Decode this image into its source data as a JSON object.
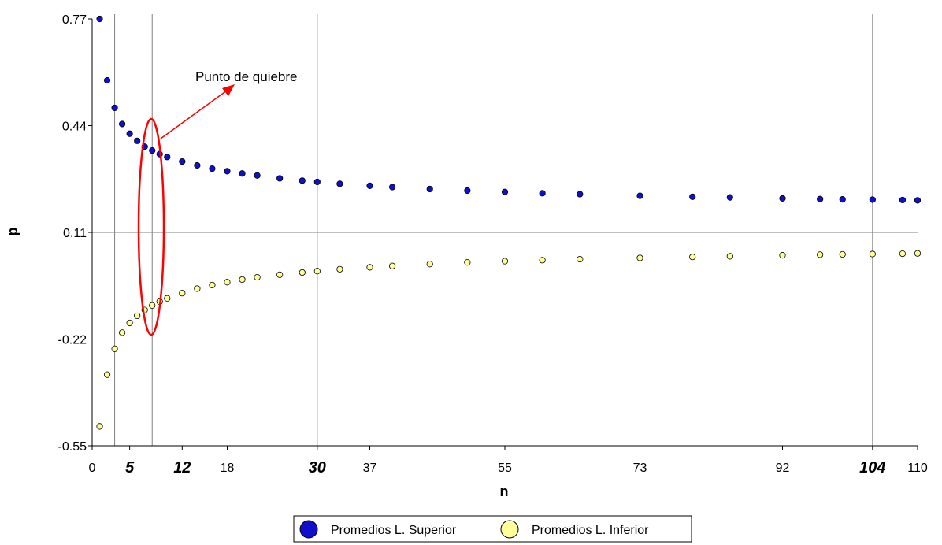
{
  "chart_data": {
    "type": "scatter",
    "xlabel": "n",
    "ylabel": "p",
    "xlim": [
      0,
      110
    ],
    "ylim": [
      -0.55,
      0.77
    ],
    "x_ticks": [
      0,
      5,
      12,
      18,
      30,
      37,
      55,
      73,
      92,
      104,
      110
    ],
    "x_ticks_emphasized": [
      5,
      12,
      30,
      104
    ],
    "y_ticks": [
      "0.77",
      "0.44",
      "0.11",
      "-0.22",
      "-0.55"
    ],
    "y_tick_values": [
      0.77,
      0.44,
      0.11,
      -0.22,
      -0.55
    ],
    "vertical_reference_lines": [
      3,
      8,
      30,
      104
    ],
    "horizontal_reference_line": 0.11,
    "annotation": "Punto de quiebre",
    "colors": {
      "upper": "#1010cc",
      "lower": "#ffff99",
      "annotation": "#ff0000"
    },
    "legend_position": "bottom-center",
    "series": [
      {
        "name": "Promedios L. Superior",
        "x": [
          1,
          2,
          3,
          4,
          5,
          6,
          7,
          8,
          9,
          10,
          12,
          14,
          16,
          18,
          20,
          22,
          25,
          28,
          30,
          33,
          37,
          40,
          45,
          50,
          55,
          60,
          65,
          73,
          80,
          85,
          92,
          97,
          100,
          104,
          108,
          110
        ],
        "y": [
          0.77,
          0.58,
          0.495,
          0.445,
          0.415,
          0.393,
          0.375,
          0.363,
          0.352,
          0.343,
          0.329,
          0.317,
          0.307,
          0.299,
          0.292,
          0.286,
          0.277,
          0.27,
          0.266,
          0.26,
          0.254,
          0.25,
          0.244,
          0.239,
          0.235,
          0.231,
          0.228,
          0.223,
          0.22,
          0.218,
          0.215,
          0.213,
          0.212,
          0.211,
          0.21,
          0.209
        ]
      },
      {
        "name": "Promedios L. Inferior",
        "x": [
          1,
          2,
          3,
          4,
          5,
          6,
          7,
          8,
          9,
          10,
          12,
          14,
          16,
          18,
          20,
          22,
          25,
          28,
          30,
          33,
          37,
          40,
          45,
          50,
          55,
          60,
          65,
          73,
          80,
          85,
          92,
          97,
          100,
          104,
          108,
          110
        ],
        "y": [
          -0.49,
          -0.33,
          -0.25,
          -0.2,
          -0.17,
          -0.148,
          -0.13,
          -0.116,
          -0.104,
          -0.094,
          -0.078,
          -0.064,
          -0.053,
          -0.044,
          -0.036,
          -0.029,
          -0.021,
          -0.014,
          -0.01,
          -0.004,
          0.002,
          0.006,
          0.012,
          0.017,
          0.021,
          0.024,
          0.027,
          0.031,
          0.034,
          0.036,
          0.039,
          0.041,
          0.042,
          0.043,
          0.044,
          0.045
        ]
      }
    ]
  }
}
